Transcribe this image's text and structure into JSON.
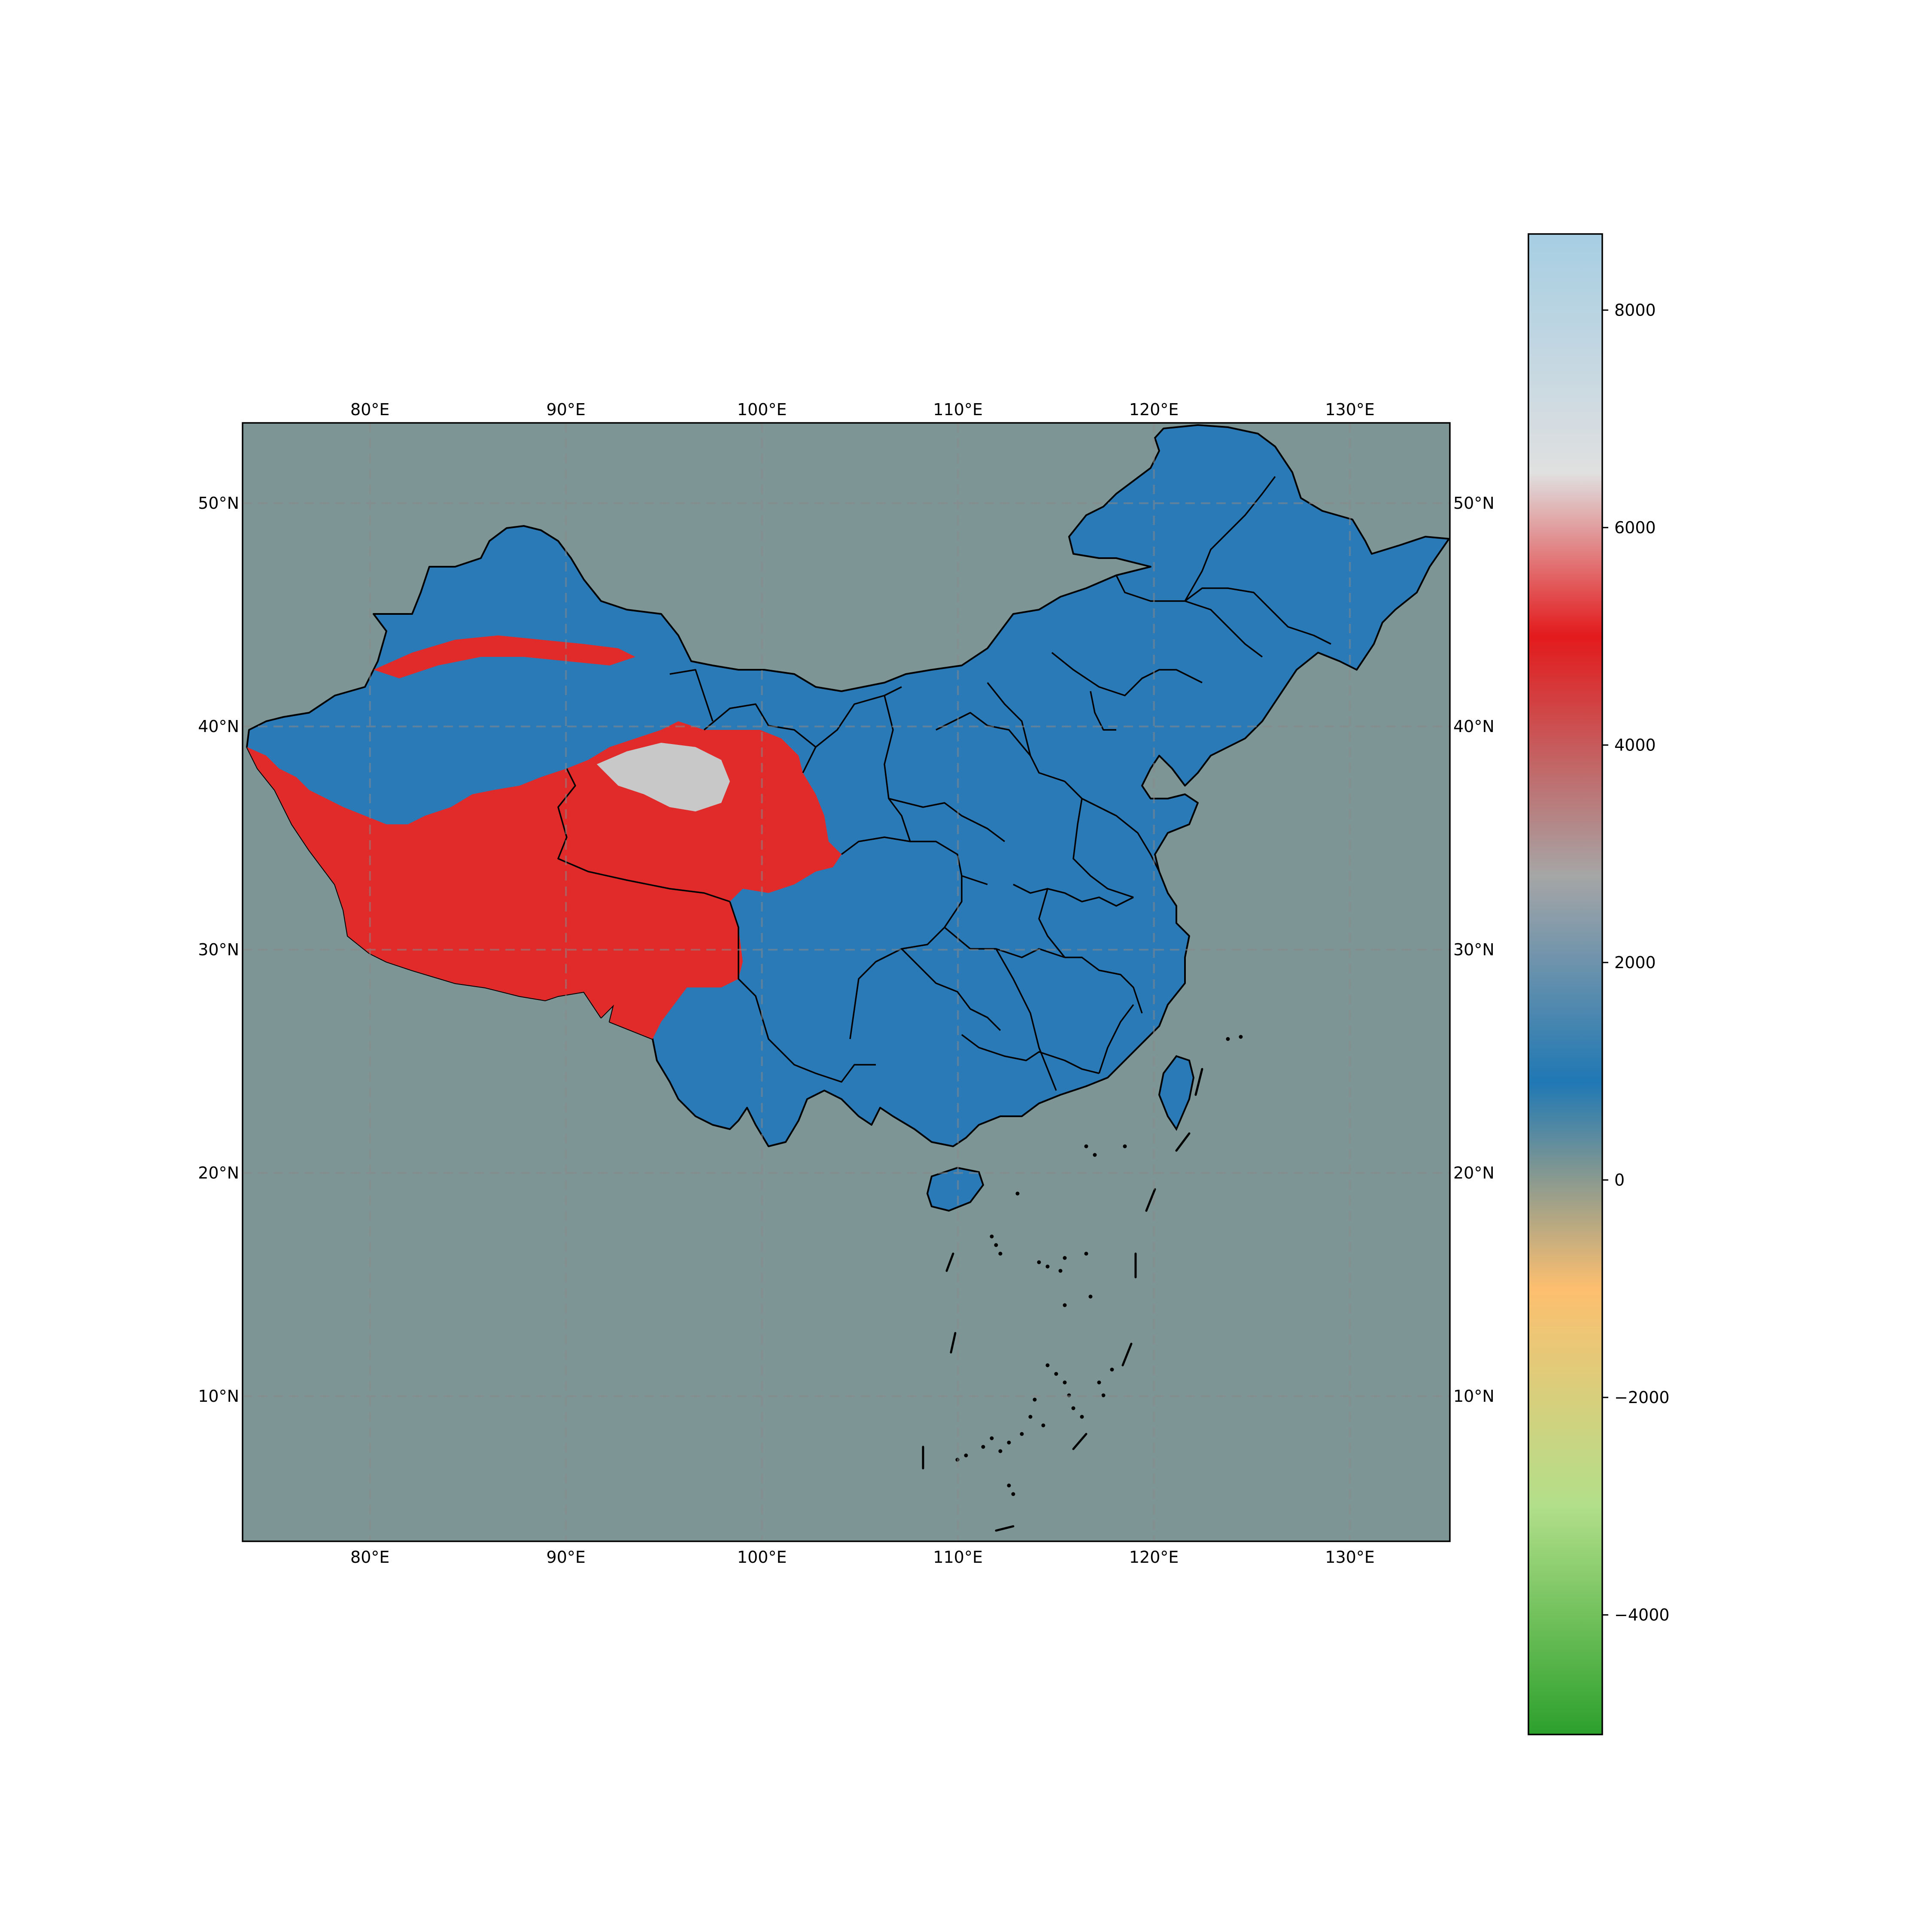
{
  "map": {
    "extent": {
      "lon_min": 73.5,
      "lon_max": 135.1,
      "lat_min": 3.5,
      "lat_max": 53.6
    },
    "grid": true,
    "lon_ticks": [
      {
        "value": 80,
        "label": "80°E"
      },
      {
        "value": 90,
        "label": "90°E"
      },
      {
        "value": 100,
        "label": "100°E"
      },
      {
        "value": 110,
        "label": "110°E"
      },
      {
        "value": 120,
        "label": "120°E"
      },
      {
        "value": 130,
        "label": "130°E"
      }
    ],
    "lat_ticks": [
      {
        "value": 50,
        "label": "50°N"
      },
      {
        "value": 40,
        "label": "40°N"
      },
      {
        "value": 30,
        "label": "30°N"
      },
      {
        "value": 20,
        "label": "20°N"
      },
      {
        "value": 10,
        "label": "10°N"
      }
    ],
    "colors": {
      "ocean": "#7d9594",
      "lowland": "#2a7ab8",
      "midland": "#9aa9b4",
      "plateau": "#e12a2a",
      "basin_high": "#c8c8c8",
      "border": "#000000",
      "grid": "#8a8a8a"
    }
  },
  "colorbar": {
    "min": -5100,
    "max": 8700,
    "ticks": [
      {
        "value": 8000,
        "label": "8000"
      },
      {
        "value": 6000,
        "label": "6000"
      },
      {
        "value": 4000,
        "label": "4000"
      },
      {
        "value": 2000,
        "label": "2000"
      },
      {
        "value": 0,
        "label": "0"
      },
      {
        "value": -2000,
        "label": "−2000"
      },
      {
        "value": -4000,
        "label": "−4000"
      }
    ],
    "stops": [
      {
        "value": -5100,
        "color": "#2ca02c"
      },
      {
        "value": -3000,
        "color": "#b2df8a"
      },
      {
        "value": -1000,
        "color": "#fdbf6f"
      },
      {
        "value": 0,
        "color": "#8a9a8f"
      },
      {
        "value": 900,
        "color": "#1f78b4"
      },
      {
        "value": 2800,
        "color": "#a6a6a6"
      },
      {
        "value": 5000,
        "color": "#e31a1c"
      },
      {
        "value": 6500,
        "color": "#e0e0e0"
      },
      {
        "value": 8700,
        "color": "#a6cee3"
      }
    ]
  }
}
